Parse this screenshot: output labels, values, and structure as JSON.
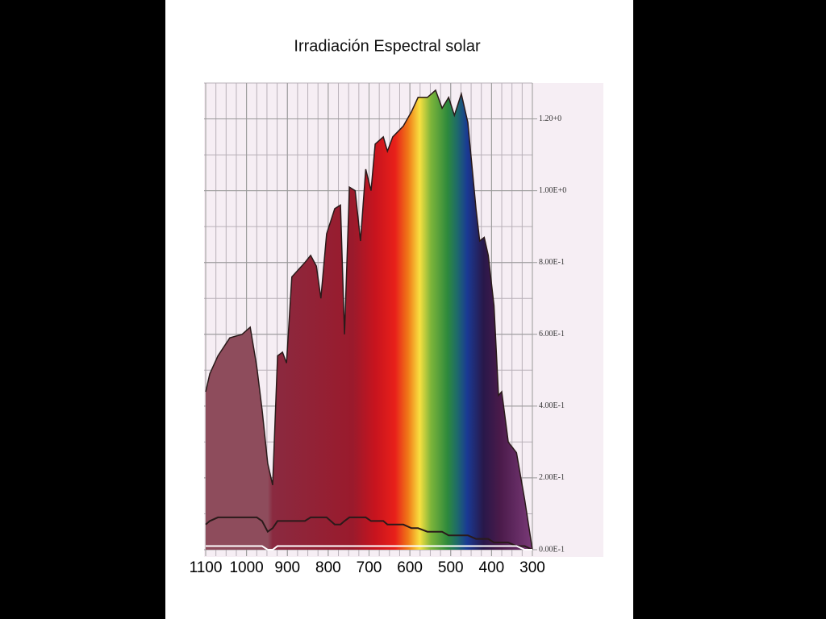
{
  "chart_data": {
    "type": "area",
    "title": "Irradiación  Espectral solar",
    "x": [
      1100,
      1090,
      1070,
      1041,
      1011,
      991,
      975,
      962,
      948,
      936,
      924,
      912,
      902,
      889,
      873,
      857,
      843,
      829,
      818,
      804,
      784,
      770,
      760,
      748,
      734,
      721,
      708,
      695,
      685,
      665,
      655,
      642,
      616,
      596,
      580,
      557,
      537,
      521,
      505,
      491,
      474,
      458,
      438,
      429,
      418,
      408,
      394,
      383,
      375,
      359,
      339,
      319,
      300
    ],
    "series": [
      {
        "color": "#2a1a1a",
        "values": [
          0.44,
          0.49,
          0.54,
          0.59,
          0.6,
          0.62,
          0.51,
          0.39,
          0.24,
          0.18,
          0.54,
          0.55,
          0.52,
          0.76,
          0.78,
          0.8,
          0.82,
          0.79,
          0.7,
          0.88,
          0.95,
          0.96,
          0.6,
          1.01,
          1.0,
          0.86,
          1.06,
          1.0,
          1.13,
          1.15,
          1.11,
          1.15,
          1.18,
          1.22,
          1.26,
          1.26,
          1.28,
          1.23,
          1.26,
          1.21,
          1.27,
          1.19,
          0.95,
          0.86,
          0.87,
          0.82,
          0.68,
          0.43,
          0.44,
          0.3,
          0.27,
          0.14,
          0.0
        ]
      },
      {
        "color": "#2a1a1a",
        "values": [
          0.07,
          0.08,
          0.09,
          0.09,
          0.09,
          0.09,
          0.09,
          0.08,
          0.05,
          0.06,
          0.08,
          0.08,
          0.08,
          0.08,
          0.08,
          0.08,
          0.09,
          0.09,
          0.09,
          0.09,
          0.07,
          0.07,
          0.08,
          0.09,
          0.09,
          0.09,
          0.09,
          0.08,
          0.08,
          0.08,
          0.07,
          0.07,
          0.07,
          0.06,
          0.06,
          0.05,
          0.05,
          0.05,
          0.04,
          0.04,
          0.04,
          0.04,
          0.03,
          0.03,
          0.03,
          0.03,
          0.02,
          0.02,
          0.02,
          0.02,
          0.01,
          0.01,
          0.0
        ]
      },
      {
        "color": "#ffffff",
        "values": [
          0.01,
          0.01,
          0.01,
          0.01,
          0.01,
          0.01,
          0.01,
          0.01,
          0.0,
          0.0,
          0.01,
          0.01,
          0.01,
          0.01,
          0.01,
          0.01,
          0.01,
          0.01,
          0.01,
          0.01,
          0.01,
          0.01,
          0.01,
          0.01,
          0.01,
          0.01,
          0.01,
          0.01,
          0.01,
          0.01,
          0.01,
          0.01,
          0.01,
          0.01,
          0.01,
          0.01,
          0.01,
          0.01,
          0.01,
          0.01,
          0.01,
          0.01,
          0.01,
          0.01,
          0.01,
          0.01,
          0.01,
          0.01,
          0.01,
          0.01,
          0.01,
          0.0,
          0.0
        ]
      }
    ],
    "xlim": [
      1100,
      300
    ],
    "xticks": [
      1100,
      1000,
      900,
      800,
      700,
      600,
      500,
      400,
      300
    ],
    "ylim": [
      0,
      1.3
    ],
    "yticks": [
      {
        "value": 0,
        "label": "0.00E-1"
      },
      {
        "value": 0.2,
        "label": "2.00E-1"
      },
      {
        "value": 0.4,
        "label": "4.00E-1"
      },
      {
        "value": 0.6,
        "label": "6.00E-1"
      },
      {
        "value": 0.8,
        "label": "8.00E-1"
      },
      {
        "value": 1.0,
        "label": "1.00E+0"
      },
      {
        "value": 1.2,
        "label": "1.20+0"
      }
    ],
    "grid": true
  }
}
